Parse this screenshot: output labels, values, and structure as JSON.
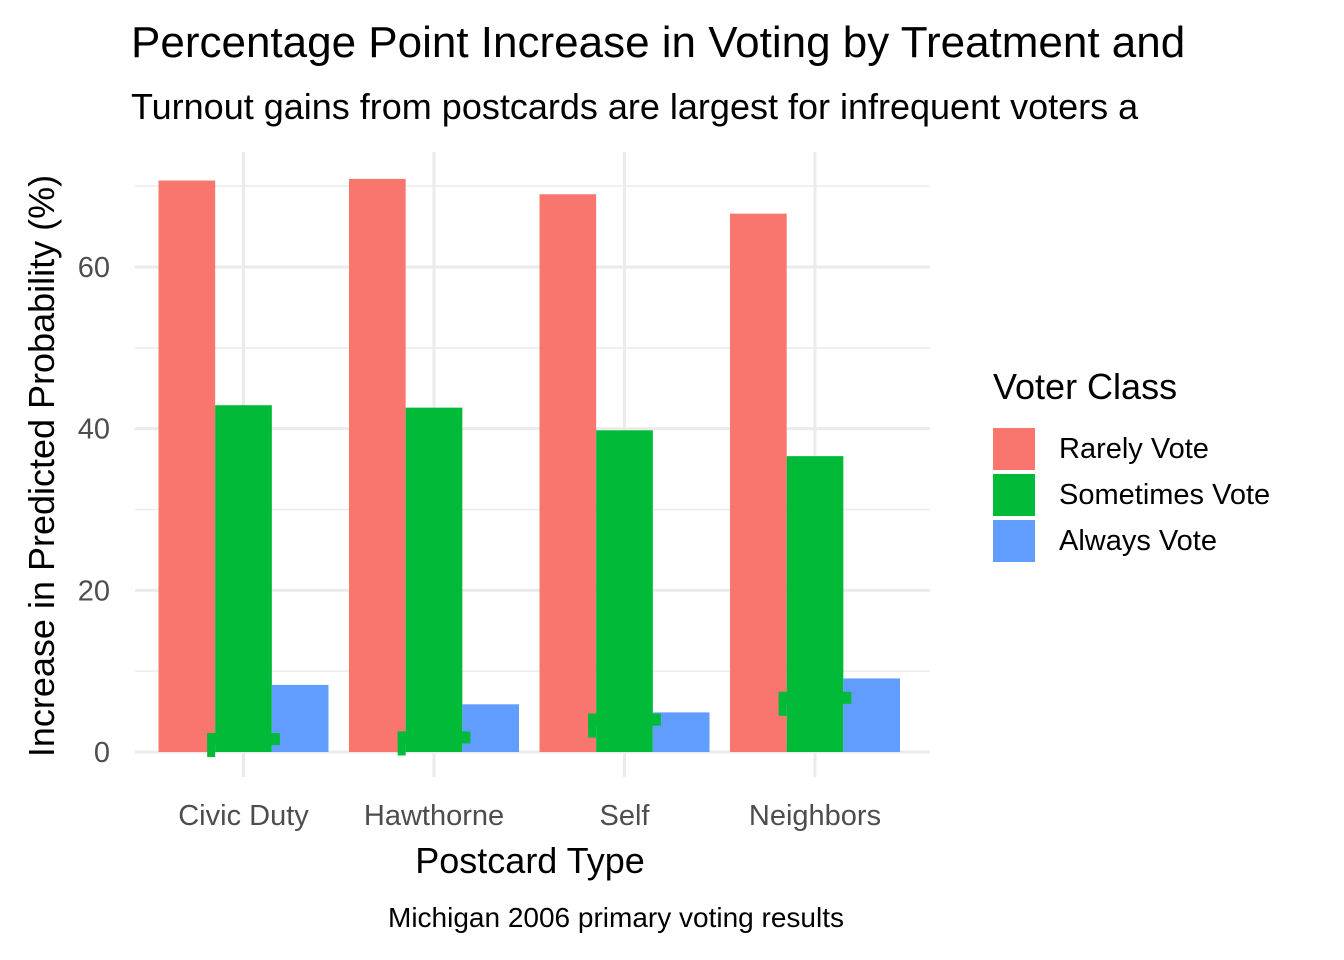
{
  "chart_data": {
    "type": "bar",
    "title": "Percentage Point Increase in Voting by Treatment and",
    "subtitle": "Turnout gains from postcards are largest for infrequent voters a",
    "caption": "Michigan 2006 primary voting results",
    "xlabel": "Postcard Type",
    "ylabel": "Increase in Predicted Probability (%)",
    "categories": [
      "Civic Duty",
      "Hawthorne",
      "Self",
      "Neighbors"
    ],
    "series": [
      {
        "name": "Rarely Vote",
        "color": "#F8766D",
        "values": [
          70.7,
          70.9,
          69.0,
          66.6
        ]
      },
      {
        "name": "Sometimes Vote",
        "color": "#00BA38",
        "values": [
          42.9,
          42.6,
          39.8,
          36.6
        ]
      },
      {
        "name": "Always Vote",
        "color": "#619CFF",
        "values": [
          8.3,
          5.9,
          4.9,
          9.1
        ]
      }
    ],
    "error_marks": [
      {
        "category": "Civic Duty",
        "value": 1.6
      },
      {
        "category": "Hawthorne",
        "value": 1.8
      },
      {
        "category": "Self",
        "value": 4.0
      },
      {
        "category": "Neighbors",
        "value": 6.7
      }
    ],
    "yticks": [
      0,
      20,
      40,
      60
    ],
    "ylim": [
      0,
      70.9
    ],
    "legend": {
      "title": "Voter Class",
      "position": "right"
    },
    "grid": true
  }
}
